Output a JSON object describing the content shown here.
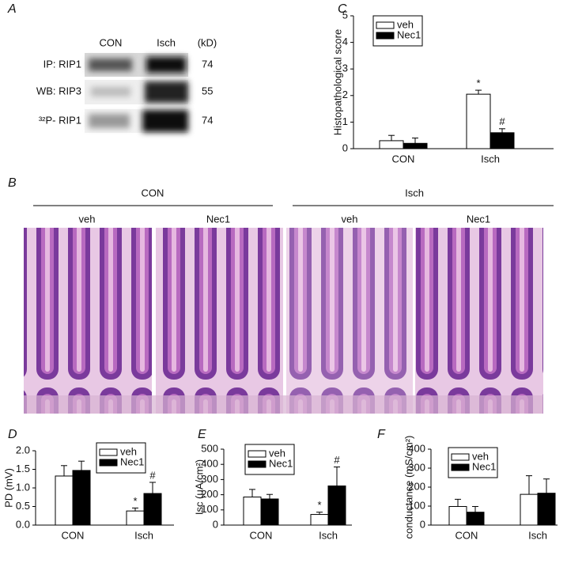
{
  "panel_a": {
    "label": "A",
    "columns": [
      "CON",
      "Isch",
      "(kD)"
    ],
    "rows": [
      {
        "label": "IP: RIP1",
        "kd": 74
      },
      {
        "label": "WB: RIP3",
        "kd": 55
      },
      {
        "label": "³²P- RIP1",
        "kd": 74
      }
    ]
  },
  "panel_b": {
    "label": "B",
    "groups": [
      "CON",
      "Isch"
    ],
    "conditions": [
      "veh",
      "Nec1",
      "veh",
      "Nec1"
    ]
  },
  "chart_data": [
    {
      "type": "bar",
      "panel": "C",
      "ylabel": "Histopathological score",
      "categories": [
        "CON",
        "Isch"
      ],
      "ylim": [
        0,
        5
      ],
      "yticks": [
        0,
        1,
        2,
        3,
        4,
        5
      ],
      "series": [
        {
          "name": "veh",
          "color": "#ffffff",
          "values": [
            0.3,
            2.05
          ],
          "errors": [
            0.2,
            0.15
          ],
          "annotations": [
            null,
            "*"
          ]
        },
        {
          "name": "Nec1",
          "color": "#000000",
          "values": [
            0.2,
            0.6
          ],
          "errors": [
            0.2,
            0.15
          ],
          "annotations": [
            null,
            "#"
          ]
        }
      ]
    },
    {
      "type": "bar",
      "panel": "D",
      "ylabel": "PD (mV)",
      "categories": [
        "CON",
        "Isch"
      ],
      "ylim": [
        0,
        2
      ],
      "yticks": [
        {
          "value": 0,
          "label": "0.0"
        },
        {
          "value": 0.5,
          "label": "0.5"
        },
        {
          "value": 1,
          "label": "1.0"
        },
        {
          "value": 1.5,
          "label": "1.5"
        },
        {
          "value": 2,
          "label": "2.0"
        }
      ],
      "series": [
        {
          "name": "veh",
          "color": "#ffffff",
          "values": [
            1.32,
            0.38
          ],
          "errors": [
            0.28,
            0.08
          ],
          "annotations": [
            null,
            "*"
          ]
        },
        {
          "name": "Nec1",
          "color": "#000000",
          "values": [
            1.47,
            0.85
          ],
          "errors": [
            0.25,
            0.3
          ],
          "annotations": [
            null,
            "#"
          ]
        }
      ]
    },
    {
      "type": "bar",
      "panel": "E",
      "ylabel": "Isc (μA/cm²)",
      "categories": [
        "CON",
        "Isch"
      ],
      "ylim": [
        0,
        500
      ],
      "yticks": [
        0,
        100,
        200,
        300,
        400,
        500
      ],
      "series": [
        {
          "name": "veh",
          "color": "#ffffff",
          "values": [
            185,
            70
          ],
          "errors": [
            50,
            15
          ],
          "annotations": [
            null,
            "*"
          ]
        },
        {
          "name": "Nec1",
          "color": "#000000",
          "values": [
            172,
            258
          ],
          "errors": [
            30,
            125
          ],
          "annotations": [
            null,
            "#"
          ]
        }
      ]
    },
    {
      "type": "bar",
      "panel": "F",
      "ylabel": "conductance (mS/cm²)",
      "categories": [
        "CON",
        "Isch"
      ],
      "ylim": [
        0,
        400
      ],
      "yticks": [
        0,
        100,
        200,
        300,
        400
      ],
      "series": [
        {
          "name": "veh",
          "color": "#ffffff",
          "values": [
            98,
            162
          ],
          "errors": [
            38,
            98
          ]
        },
        {
          "name": "Nec1",
          "color": "#000000",
          "values": [
            68,
            168
          ],
          "errors": [
            30,
            75
          ]
        }
      ]
    }
  ]
}
